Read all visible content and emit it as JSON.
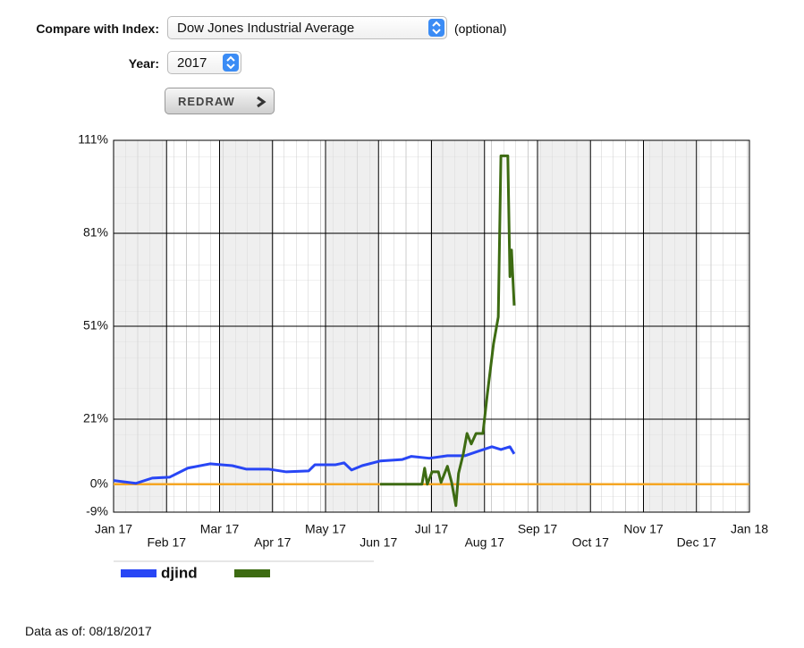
{
  "form": {
    "index_label": "Compare with Index:",
    "index_value": "Dow Jones Industrial Average",
    "optional": "(optional)",
    "year_label": "Year:",
    "year_value": "2017",
    "button": "REDRAW"
  },
  "chart_data": {
    "type": "line",
    "xlim": [
      0,
      12
    ],
    "xticks": [
      {
        "value": 0,
        "label": "Jan 17"
      },
      {
        "value": 1,
        "label": "Feb 17"
      },
      {
        "value": 2,
        "label": "Mar 17"
      },
      {
        "value": 3,
        "label": "Apr 17"
      },
      {
        "value": 4,
        "label": "May 17"
      },
      {
        "value": 5,
        "label": "Jun 17"
      },
      {
        "value": 6,
        "label": "Jul 17"
      },
      {
        "value": 7,
        "label": "Aug 17"
      },
      {
        "value": 8,
        "label": "Sep 17"
      },
      {
        "value": 9,
        "label": "Oct 17"
      },
      {
        "value": 10,
        "label": "Nov 17"
      },
      {
        "value": 11,
        "label": "Dec 17"
      },
      {
        "value": 12,
        "label": "Jan 18"
      }
    ],
    "ylim": [
      -9,
      111
    ],
    "yticks": [
      {
        "value": -9,
        "label": "-9%"
      },
      {
        "value": 0,
        "label": "0%"
      },
      {
        "value": 21,
        "label": "21%"
      },
      {
        "value": 51,
        "label": "51%"
      },
      {
        "value": 81,
        "label": "81%"
      },
      {
        "value": 111,
        "label": "111%"
      }
    ],
    "grid": true,
    "reference_line": {
      "value": 0,
      "color": "#f5a623"
    },
    "series": [
      {
        "name": "djind",
        "color": "#2846f5",
        "x": [
          0,
          0.42,
          0.73,
          1.06,
          1.4,
          1.82,
          2.24,
          2.5,
          2.92,
          3.26,
          3.68,
          3.8,
          4.19,
          4.35,
          4.49,
          4.69,
          5.03,
          5.45,
          5.62,
          5.96,
          6.3,
          6.63,
          6.89,
          7.14,
          7.31,
          7.48,
          7.56
        ],
        "values": [
          1.2,
          0.3,
          2,
          2.3,
          5.2,
          6.6,
          6,
          4.9,
          4.9,
          4,
          4.3,
          6.3,
          6.3,
          6.9,
          4.6,
          6,
          7.5,
          8,
          9,
          8.4,
          9.2,
          9.2,
          10.7,
          12.1,
          11.2,
          12.1,
          9.8
        ]
      },
      {
        "color": "#3d6b12",
        "x": [
          5.03,
          5.82,
          5.87,
          5.92,
          6.01,
          6.13,
          6.18,
          6.3,
          6.38,
          6.46,
          6.51,
          6.6,
          6.67,
          6.75,
          6.84,
          6.97,
          7.05,
          7.17,
          7.26,
          7.31,
          7.44,
          7.48,
          7.51,
          7.56
        ],
        "values": [
          0,
          0,
          5.2,
          0,
          4,
          4,
          0.6,
          5.8,
          0.6,
          -6.9,
          3.5,
          9.8,
          16.4,
          13,
          16.4,
          16.4,
          28.6,
          45.3,
          54,
          106,
          106,
          67,
          75.6,
          57.7
        ]
      }
    ]
  },
  "footer": "Data as of: 08/18/2017"
}
